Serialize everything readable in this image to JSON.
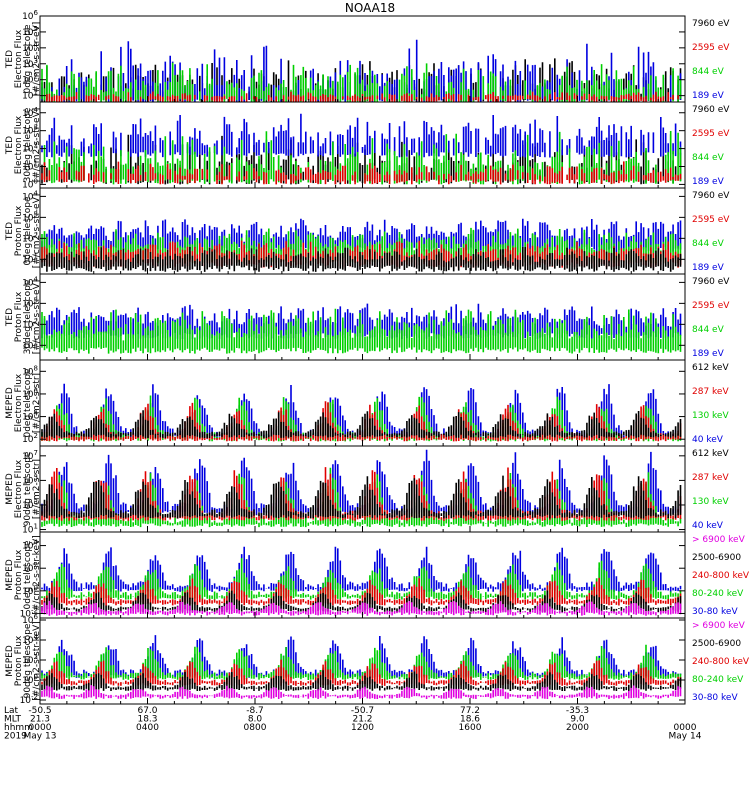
{
  "chart_data": {
    "type": "line",
    "title": "NOAA18",
    "x_ticks": {
      "lat": [
        "-50.5",
        "67.0",
        "-8.7",
        "-50.7",
        "77.2",
        "-35.3",
        ""
      ],
      "mlt": [
        "21.3",
        "18.3",
        "8.0",
        "21.2",
        "18.6",
        "9.0",
        ""
      ],
      "hhmm": [
        "0000",
        "0400",
        "0800",
        "1200",
        "1600",
        "2000",
        "0000"
      ],
      "date": [
        "May 13",
        "",
        "",
        "",
        "",
        "",
        "May 14"
      ]
    },
    "row_labels": {
      "lat": "Lat",
      "mlt": "MLT",
      "hhmm": "hhmm",
      "year": "2019"
    },
    "x_range_hours": [
      0,
      24
    ],
    "panels": [
      {
        "ylabel": [
          "TED",
          "Electron Flux",
          "0deg telescope",
          "[#/cm2-s-str-eV]"
        ],
        "yticks": [
          "10^1",
          "10^2",
          "10^3",
          "10^4",
          "10^5",
          "10^6"
        ],
        "y_log_range": [
          0.6,
          6
        ],
        "legend": [
          {
            "label": "7960 eV",
            "color": "#000000"
          },
          {
            "label": "2595 eV",
            "color": "#e00000"
          },
          {
            "label": "844 eV",
            "color": "#00d000"
          },
          {
            "label": "189 eV",
            "color": "#0000e0"
          }
        ],
        "series_order": [
          "7960 eV",
          "189 eV",
          "844 eV",
          "2595 eV"
        ],
        "base_log": [
          0.8,
          0.8,
          0.8,
          0.8
        ],
        "variability": [
          2.8,
          3.8,
          2.5,
          0.5
        ],
        "density": 0.12,
        "mode": "spiky"
      },
      {
        "ylabel": [
          "TED",
          "Electron Flux",
          "30deg telescope",
          "[#/cm2-s-str-eV]"
        ],
        "yticks": [
          "10^0",
          "10^1",
          "10^2",
          "10^3",
          "10^4"
        ],
        "y_log_range": [
          -0.2,
          4.6
        ],
        "legend": [
          {
            "label": "7960 eV",
            "color": "#000000"
          },
          {
            "label": "2595 eV",
            "color": "#e00000"
          },
          {
            "label": "844 eV",
            "color": "#00d000"
          },
          {
            "label": "189 eV",
            "color": "#0000e0"
          }
        ],
        "series_order": [
          "7960 eV",
          "189 eV",
          "844 eV",
          "2595 eV"
        ],
        "base_log": [
          0.3,
          1.8,
          0.3,
          0.3
        ],
        "variability": [
          2.6,
          2.4,
          3.0,
          1.0
        ],
        "density": 0.12,
        "mode": "spiky"
      },
      {
        "ylabel": [
          "TED",
          "Proton Flux",
          "0deg telescope",
          "[#/cm2-s-str-eV]"
        ],
        "yticks": [
          "10^1",
          "10^2",
          "10^3",
          "10^4"
        ],
        "y_log_range": [
          0.3,
          4.4
        ],
        "legend": [
          {
            "label": "7960 eV",
            "color": "#000000"
          },
          {
            "label": "2595 eV",
            "color": "#e00000"
          },
          {
            "label": "844 eV",
            "color": "#00d000"
          },
          {
            "label": "189 eV",
            "color": "#0000e0"
          }
        ],
        "series_order": [
          "189 eV",
          "844 eV",
          "2595 eV",
          "7960 eV"
        ],
        "base_log": [
          1.6,
          1.1,
          0.9,
          0.7
        ],
        "variability": [
          1.4,
          1.4,
          1.0,
          0.9
        ],
        "density": 0.75,
        "mode": "dense"
      },
      {
        "ylabel": [
          "TED",
          "Proton Flux",
          "30deg telescope",
          "[#/cm2-s-str-eV]"
        ],
        "yticks": [
          "10^1",
          "10^2",
          "10^3",
          "10^4"
        ],
        "y_log_range": [
          0.3,
          4.4
        ],
        "legend": [
          {
            "label": "7960 eV",
            "color": "#000000"
          },
          {
            "label": "2595 eV",
            "color": "#e00000"
          },
          {
            "label": "844 eV",
            "color": "#00d000"
          },
          {
            "label": "189 eV",
            "color": "#0000e0"
          }
        ],
        "series_order": [
          "189 eV",
          "844 eV"
        ],
        "base_log": [
          1.6,
          0.9
        ],
        "variability": [
          1.4,
          1.9
        ],
        "density": 0.75,
        "mode": "dense"
      },
      {
        "ylabel": [
          "MEPED",
          "Electron Flux",
          "0deg telescope",
          "[#/cm2-s-str]"
        ],
        "yticks": [
          "10^2",
          "10^4",
          "10^6",
          "10^8"
        ],
        "y_log_range": [
          1.4,
          9.0
        ],
        "legend": [
          {
            "label": "612 keV",
            "color": "#000000"
          },
          {
            "label": "287 keV",
            "color": "#e00000"
          },
          {
            "label": "130 keV",
            "color": "#00d000"
          },
          {
            "label": "40 keV",
            "color": "#0000e0"
          }
        ],
        "series_order": [
          "40 keV",
          "130 keV",
          "287 keV",
          "612 keV"
        ],
        "base_log": [
          2.3,
          2.1,
          2.1,
          2.4
        ],
        "variability": [
          4.5,
          3.5,
          3.0,
          2.0
        ],
        "density": 0.55,
        "mode": "peaks"
      },
      {
        "ylabel": [
          "MEPED",
          "Electron Flux",
          "90deg telescope",
          "[#/cm2-s-str]"
        ],
        "yticks": [
          "10^1",
          "10^3",
          "10^5",
          "10^7"
        ],
        "y_log_range": [
          0.8,
          7.8
        ],
        "legend": [
          {
            "label": "612 keV",
            "color": "#000000"
          },
          {
            "label": "287 keV",
            "color": "#e00000"
          },
          {
            "label": "130 keV",
            "color": "#00d000"
          },
          {
            "label": "40 keV",
            "color": "#0000e0"
          }
        ],
        "series_order": [
          "40 keV",
          "130 keV",
          "287 keV",
          "612 keV"
        ],
        "base_log": [
          2.5,
          1.5,
          2.0,
          2.2
        ],
        "variability": [
          4.5,
          4.0,
          3.8,
          3.0
        ],
        "density": 0.85,
        "mode": "peaks"
      },
      {
        "ylabel": [
          "MEPED",
          "Proton Flux",
          "0deg telescope",
          "[#/cm2-s-str-keV]"
        ],
        "yticks": [
          "10^-2",
          "10^0",
          "10^2",
          "10^4"
        ],
        "y_log_range": [
          -2.4,
          5.2
        ],
        "legend": [
          {
            "label": "> 6900 keV",
            "color": "#e000e0"
          },
          {
            "label": "2500-6900",
            "color": "#000000"
          },
          {
            "label": "240-800 keV",
            "color": "#e00000"
          },
          {
            "label": "80-240 keV",
            "color": "#00d000"
          },
          {
            "label": "30-80 keV",
            "color": "#0000e0"
          }
        ],
        "series_order": [
          "30-80 keV",
          "80-240 keV",
          "240-800 keV",
          "2500-6900",
          "> 6900 keV"
        ],
        "base_log": [
          0.2,
          -0.5,
          -1.0,
          -1.6,
          -1.9
        ],
        "variability": [
          3.8,
          3.0,
          2.0,
          1.5,
          1.0
        ],
        "density": 0.6,
        "mode": "peaks"
      },
      {
        "ylabel": [
          "MEPED",
          "Proton Flux",
          "90deg telescope",
          "[#/cm2-s-str-keV]"
        ],
        "yticks": [
          "10^-2",
          "10^0",
          "10^2",
          "10^4",
          "10^6"
        ],
        "y_log_range": [
          -2.4,
          6.2
        ],
        "legend": [
          {
            "label": "> 6900 keV",
            "color": "#e000e0"
          },
          {
            "label": "2500-6900",
            "color": "#000000"
          },
          {
            "label": "240-800 keV",
            "color": "#e00000"
          },
          {
            "label": "80-240 keV",
            "color": "#00d000"
          },
          {
            "label": "30-80 keV",
            "color": "#0000e0"
          }
        ],
        "series_order": [
          "30-80 keV",
          "80-240 keV",
          "240-800 keV",
          "2500-6900",
          "> 6900 keV"
        ],
        "base_log": [
          0.5,
          0.3,
          -0.3,
          -0.8,
          -1.6
        ],
        "variability": [
          3.8,
          3.0,
          2.2,
          1.6,
          1.0
        ],
        "density": 0.6,
        "mode": "peaks"
      }
    ]
  }
}
